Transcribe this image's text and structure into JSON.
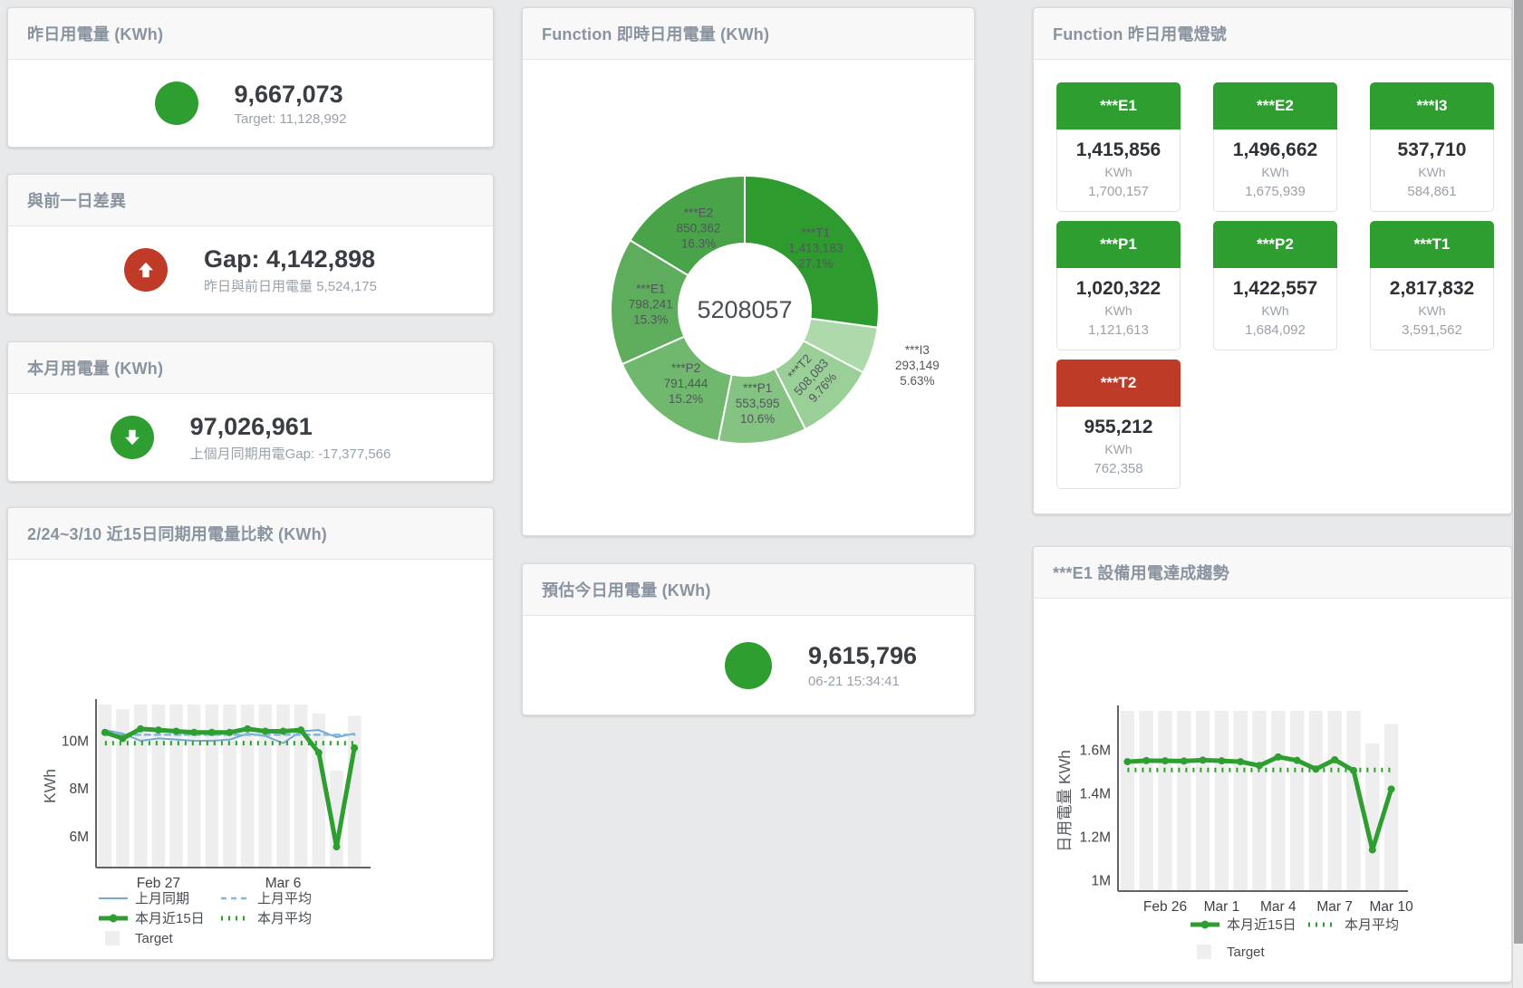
{
  "colors": {
    "green": "#2f9e31",
    "red": "#c03a28",
    "blue": "#74a9cf",
    "target_gray": "#eeeeee",
    "title_text": "#8a93a0"
  },
  "cards": {
    "yesterday": {
      "title": "昨日用電量 (KWh)",
      "value": "9,667,073",
      "subtext": "Target: 11,128,992"
    },
    "day_gap": {
      "title": "與前一日差異",
      "value": "Gap: 4,142,898",
      "subtext": "昨日與前日用電量 5,524,175"
    },
    "month": {
      "title": "本月用電量 (KWh)",
      "value": "97,026,961",
      "subtext": "上個月同期用電Gap: -17,377,566"
    },
    "compare15": {
      "title": "2/24~3/10 近15日同期用電量比較 (KWh)"
    },
    "realtime_donut": {
      "title": "Function 即時日用電量 (KWh)"
    },
    "estimate_today": {
      "title": "預估今日用電量 (KWh)",
      "value": "9,615,796",
      "subtext": "06-21 15:34:41"
    },
    "lights": {
      "title": "Function 昨日用電燈號",
      "tiles": [
        {
          "label": "***E1",
          "value": "1,415,856",
          "unit": "KWh",
          "target": "1,700,157",
          "status": "green"
        },
        {
          "label": "***E2",
          "value": "1,496,662",
          "unit": "KWh",
          "target": "1,675,939",
          "status": "green"
        },
        {
          "label": "***I3",
          "value": "537,710",
          "unit": "KWh",
          "target": "584,861",
          "status": "green"
        },
        {
          "label": "***P1",
          "value": "1,020,322",
          "unit": "KWh",
          "target": "1,121,613",
          "status": "green"
        },
        {
          "label": "***P2",
          "value": "1,422,557",
          "unit": "KWh",
          "target": "1,684,092",
          "status": "green"
        },
        {
          "label": "***T1",
          "value": "2,817,832",
          "unit": "KWh",
          "target": "3,591,562",
          "status": "green"
        },
        {
          "label": "***T2",
          "value": "955,212",
          "unit": "KWh",
          "target": "762,358",
          "status": "red"
        }
      ]
    },
    "e1_trend": {
      "title": "***E1 設備用電達成趨勢"
    }
  },
  "chart_data": [
    {
      "type": "pie",
      "name": "function-realtime-daily-usage-donut",
      "title": "Function 即時日用電量 (KWh)",
      "center_total": "5208057",
      "segments": [
        {
          "name": "***T1",
          "value": 1413183,
          "label_value": "1,413,183",
          "pct_label": "27.1%",
          "color": "#2e9b2f"
        },
        {
          "name": "***I3",
          "value": 293149,
          "label_value": "293,149",
          "pct_label": "5.63%",
          "color": "#aed9ab",
          "label_pos": "outside"
        },
        {
          "name": "***T2",
          "value": 508083,
          "label_value": "508,083",
          "pct_label": "9.76%",
          "color": "#9bcf98",
          "label_rotate": -48
        },
        {
          "name": "***P1",
          "value": 553595,
          "label_value": "553,595",
          "pct_label": "10.6%",
          "color": "#85c383"
        },
        {
          "name": "***P2",
          "value": 791444,
          "label_value": "791,444",
          "pct_label": "15.2%",
          "color": "#71b86f"
        },
        {
          "name": "***E1",
          "value": 798241,
          "label_value": "798,241",
          "pct_label": "15.3%",
          "color": "#5ead5c"
        },
        {
          "name": "***E2",
          "value": 850362,
          "label_value": "850,362",
          "pct_label": "16.3%",
          "color": "#49a348"
        }
      ]
    },
    {
      "type": "line",
      "name": "compare-15day-chart",
      "title": "2/24~3/10 近15日同期用電量比較 (KWh)",
      "ylabel": "KWh",
      "yticks": [
        {
          "v": 6,
          "label": "6M"
        },
        {
          "v": 8,
          "label": "8M"
        },
        {
          "v": 10,
          "label": "10M"
        }
      ],
      "xticks": [
        {
          "i": 3,
          "label": "Feb 27"
        },
        {
          "i": 10,
          "label": "Mar 6"
        }
      ],
      "target_legend": "Target",
      "target_bars": [
        11.52,
        11.32,
        11.52,
        11.52,
        11.52,
        11.52,
        11.52,
        11.52,
        11.52,
        11.52,
        11.52,
        11.52,
        11.14,
        8.75,
        11.05
      ],
      "series": [
        {
          "name": "上月同期",
          "style": "thin-solid",
          "color": "#74a9cf",
          "values": [
            10.45,
            10.3,
            10.0,
            10.1,
            10.05,
            10.0,
            10.0,
            10.05,
            10.3,
            10.2,
            9.9,
            10.4,
            10.45,
            10.15,
            10.3
          ]
        },
        {
          "name": "上月平均",
          "style": "dashed",
          "color": "#85b8d8",
          "constant": 10.25
        },
        {
          "name": "本月近15日",
          "style": "thick-solid",
          "color": "#2f9e31",
          "values": [
            10.35,
            10.1,
            10.5,
            10.45,
            10.4,
            10.35,
            10.35,
            10.35,
            10.5,
            10.4,
            10.4,
            10.45,
            9.5,
            5.55,
            9.7
          ]
        },
        {
          "name": "本月平均",
          "style": "dotted",
          "color": "#2f9e31",
          "constant": 9.9
        }
      ]
    },
    {
      "type": "line",
      "name": "e1-device-trend-chart",
      "title": "***E1 設備用電達成趨勢",
      "ylabel": "日用電量 KWh",
      "yticks": [
        {
          "v": 1,
          "label": "1M"
        },
        {
          "v": 1.2,
          "label": "1.2M"
        },
        {
          "v": 1.4,
          "label": "1.4M"
        },
        {
          "v": 1.6,
          "label": "1.6M"
        }
      ],
      "xticks": [
        {
          "i": 2,
          "label": "Feb 26"
        },
        {
          "i": 5,
          "label": "Mar 1"
        },
        {
          "i": 8,
          "label": "Mar 4"
        },
        {
          "i": 11,
          "label": "Mar 7"
        },
        {
          "i": 14,
          "label": "Mar 10"
        }
      ],
      "target_legend": "Target",
      "target_bars": [
        1.78,
        1.78,
        1.78,
        1.78,
        1.78,
        1.78,
        1.78,
        1.78,
        1.78,
        1.78,
        1.78,
        1.78,
        1.78,
        1.63,
        1.72
      ],
      "series": [
        {
          "name": "本月近15日",
          "style": "thick-solid",
          "color": "#2f9e31",
          "values": [
            1.546,
            1.551,
            1.55,
            1.549,
            1.553,
            1.55,
            1.546,
            1.528,
            1.568,
            1.552,
            1.512,
            1.555,
            1.505,
            1.14,
            1.42
          ]
        },
        {
          "name": "本月平均",
          "style": "dotted",
          "color": "#2f9e31",
          "constant": 1.508
        }
      ]
    }
  ]
}
